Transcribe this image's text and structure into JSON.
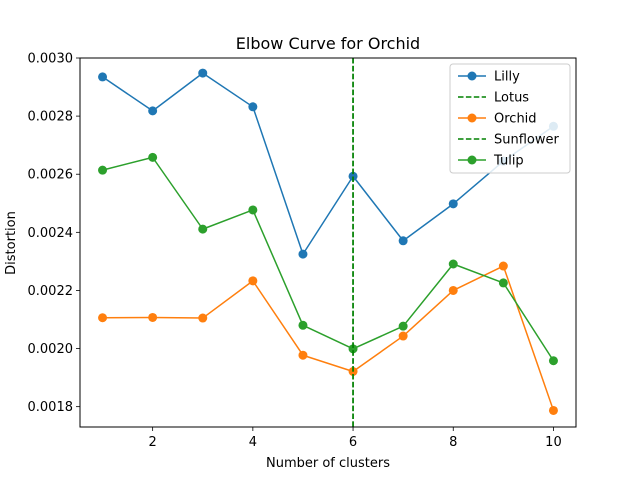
{
  "chart_data": {
    "type": "line",
    "title": "Elbow Curve for Orchid",
    "xlabel": "Number of clusters",
    "ylabel": "Distortion",
    "xlim": [
      0.55,
      10.45
    ],
    "ylim": [
      0.00173,
      0.003
    ],
    "xticks": [
      2,
      4,
      6,
      8,
      10
    ],
    "yticks": [
      0.0018,
      0.002,
      0.0022,
      0.0024,
      0.0026,
      0.0028,
      0.003
    ],
    "ytick_labels": [
      "0.0018",
      "0.0020",
      "0.0022",
      "0.0024",
      "0.0026",
      "0.0028",
      "0.0030"
    ],
    "grid": false,
    "legend_position": "top-right",
    "x": [
      1,
      2,
      3,
      4,
      5,
      6,
      7,
      8,
      9,
      10
    ],
    "series": [
      {
        "name": "Lilly",
        "color": "#1f77b4",
        "values": [
          0.002935,
          0.002818,
          0.002948,
          0.002832,
          0.002325,
          0.002593,
          0.002371,
          0.002498,
          0.002645,
          0.002765
        ]
      },
      {
        "name": "Orchid",
        "color": "#ff7f0e",
        "values": [
          0.002106,
          0.002107,
          0.002105,
          0.002233,
          0.001977,
          0.001921,
          0.002043,
          0.0022,
          0.002284,
          0.001787
        ]
      },
      {
        "name": "Tulip",
        "color": "#2ca02c",
        "values": [
          0.002614,
          0.002658,
          0.002411,
          0.002477,
          0.00208,
          0.001999,
          0.002077,
          0.002291,
          0.002226,
          0.001958
        ]
      }
    ],
    "vlines": [
      {
        "name": "Lotus",
        "x": 6,
        "color": "#008000",
        "style": "dashed"
      },
      {
        "name": "Sunflower",
        "x": 6,
        "color": "#008000",
        "style": "dashed"
      }
    ],
    "legend": [
      {
        "label": "Lilly",
        "kind": "line-marker",
        "color": "#1f77b4"
      },
      {
        "label": "Lotus",
        "kind": "dashed",
        "color": "#008000"
      },
      {
        "label": "Orchid",
        "kind": "line-marker",
        "color": "#ff7f0e"
      },
      {
        "label": "Sunflower",
        "kind": "dashed",
        "color": "#008000"
      },
      {
        "label": "Tulip",
        "kind": "line-marker",
        "color": "#2ca02c"
      }
    ]
  }
}
